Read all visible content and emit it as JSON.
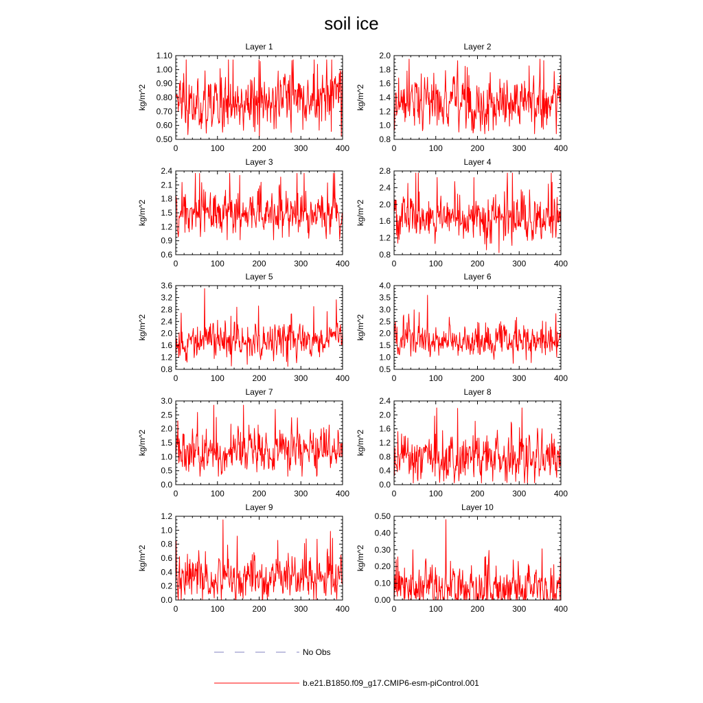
{
  "chart_data": {
    "title": "soil ice",
    "type": "line",
    "legend": [
      {
        "label": "No Obs",
        "color": "#8080c0",
        "style": "dashed"
      },
      {
        "label": "b.e21.B1850.f09_g17.CMIP6-esm-piControl.001",
        "color": "#ff0000",
        "style": "solid"
      }
    ],
    "panels": [
      {
        "title": "Layer 1",
        "ylabel": "kg/m^2",
        "xlim": [
          0,
          400
        ],
        "xticks": [
          0,
          100,
          200,
          300,
          400
        ],
        "ylim": [
          0.5,
          1.1
        ],
        "yticks": [
          "0.50",
          "0.60",
          "0.70",
          "0.80",
          "0.90",
          "1.00",
          "1.10"
        ],
        "series": {
          "name": "b.e21.B1850.f09_g17.CMIP6-esm-piControl.001",
          "n": 400,
          "mean": 0.78,
          "spread": 0.09,
          "max": 1.07,
          "min": 0.52
        }
      },
      {
        "title": "Layer 2",
        "ylabel": "kg/m^2",
        "xlim": [
          0,
          400
        ],
        "xticks": [
          0,
          100,
          200,
          300,
          400
        ],
        "ylim": [
          0.8,
          2.0
        ],
        "yticks": [
          "0.8",
          "1.0",
          "1.2",
          "1.4",
          "1.6",
          "1.8",
          "2.0"
        ],
        "series": {
          "name": "b.e21.B1850.f09_g17.CMIP6-esm-piControl.001",
          "n": 400,
          "mean": 1.32,
          "spread": 0.17,
          "max": 1.95,
          "min": 0.88
        }
      },
      {
        "title": "Layer 3",
        "ylabel": "kg/m^2",
        "xlim": [
          0,
          400
        ],
        "xticks": [
          0,
          100,
          200,
          300,
          400
        ],
        "ylim": [
          0.6,
          2.4
        ],
        "yticks": [
          "0.6",
          "0.9",
          "1.2",
          "1.5",
          "1.8",
          "2.1",
          "2.4"
        ],
        "series": {
          "name": "b.e21.B1850.f09_g17.CMIP6-esm-piControl.001",
          "n": 400,
          "mean": 1.5,
          "spread": 0.22,
          "max": 2.35,
          "min": 0.92
        }
      },
      {
        "title": "Layer 4",
        "ylabel": "kg/m^2",
        "xlim": [
          0,
          400
        ],
        "xticks": [
          0,
          100,
          200,
          300,
          400
        ],
        "ylim": [
          0.8,
          2.8
        ],
        "yticks": [
          "0.8",
          "1.2",
          "1.6",
          "2.0",
          "2.4",
          "2.8"
        ],
        "series": {
          "name": "b.e21.B1850.f09_g17.CMIP6-esm-piControl.001",
          "n": 400,
          "mean": 1.65,
          "spread": 0.25,
          "max": 2.75,
          "min": 0.85
        }
      },
      {
        "title": "Layer 5",
        "ylabel": "kg/m^2",
        "xlim": [
          0,
          400
        ],
        "xticks": [
          0,
          100,
          200,
          300,
          400
        ],
        "ylim": [
          0.8,
          3.6
        ],
        "yticks": [
          "0.8",
          "1.2",
          "1.6",
          "2.0",
          "2.4",
          "2.8",
          "3.2",
          "3.6"
        ],
        "series": {
          "name": "b.e21.B1850.f09_g17.CMIP6-esm-piControl.001",
          "n": 400,
          "mean": 1.75,
          "spread": 0.28,
          "max": 3.5,
          "min": 0.9
        }
      },
      {
        "title": "Layer 6",
        "ylabel": "kg/m^2",
        "xlim": [
          0,
          400
        ],
        "xticks": [
          0,
          100,
          200,
          300,
          400
        ],
        "ylim": [
          0.5,
          4.0
        ],
        "yticks": [
          "0.5",
          "1.0",
          "1.5",
          "2.0",
          "2.5",
          "3.0",
          "3.5",
          "4.0"
        ],
        "series": {
          "name": "b.e21.B1850.f09_g17.CMIP6-esm-piControl.001",
          "n": 400,
          "mean": 1.7,
          "spread": 0.3,
          "max": 3.6,
          "min": 0.75
        }
      },
      {
        "title": "Layer 7",
        "ylabel": "kg/m^2",
        "xlim": [
          0,
          400
        ],
        "xticks": [
          0,
          100,
          200,
          300,
          400
        ],
        "ylim": [
          0.0,
          3.0
        ],
        "yticks": [
          "0.0",
          "0.5",
          "1.0",
          "1.5",
          "2.0",
          "2.5",
          "3.0"
        ],
        "series": {
          "name": "b.e21.B1850.f09_g17.CMIP6-esm-piControl.001",
          "n": 400,
          "mean": 1.2,
          "spread": 0.35,
          "max": 2.85,
          "min": 0.3
        }
      },
      {
        "title": "Layer 8",
        "ylabel": "kg/m^2",
        "xlim": [
          0,
          400
        ],
        "xticks": [
          0,
          100,
          200,
          300,
          400
        ],
        "ylim": [
          0.0,
          2.4
        ],
        "yticks": [
          "0.0",
          "0.4",
          "0.8",
          "1.2",
          "1.6",
          "2.0",
          "2.4"
        ],
        "series": {
          "name": "b.e21.B1850.f09_g17.CMIP6-esm-piControl.001",
          "n": 400,
          "mean": 0.72,
          "spread": 0.3,
          "max": 2.2,
          "min": 0.05
        }
      },
      {
        "title": "Layer 9",
        "ylabel": "kg/m^2",
        "xlim": [
          0,
          400
        ],
        "xticks": [
          0,
          100,
          200,
          300,
          400
        ],
        "ylim": [
          0.0,
          1.2
        ],
        "yticks": [
          "0.0",
          "0.2",
          "0.4",
          "0.6",
          "0.8",
          "1.0",
          "1.2"
        ],
        "series": {
          "name": "b.e21.B1850.f09_g17.CMIP6-esm-piControl.001",
          "n": 400,
          "mean": 0.3,
          "spread": 0.15,
          "max": 1.15,
          "min": 0.0
        }
      },
      {
        "title": "Layer 10",
        "ylabel": "kg/m^2",
        "xlim": [
          0,
          400
        ],
        "xticks": [
          0,
          100,
          200,
          300,
          400
        ],
        "ylim": [
          0.0,
          0.5
        ],
        "yticks": [
          "0.00",
          "0.10",
          "0.20",
          "0.30",
          "0.40",
          "0.50"
        ],
        "series": {
          "name": "b.e21.B1850.f09_g17.CMIP6-esm-piControl.001",
          "n": 400,
          "mean": 0.07,
          "spread": 0.06,
          "max": 0.48,
          "min": 0.0
        }
      }
    ]
  }
}
